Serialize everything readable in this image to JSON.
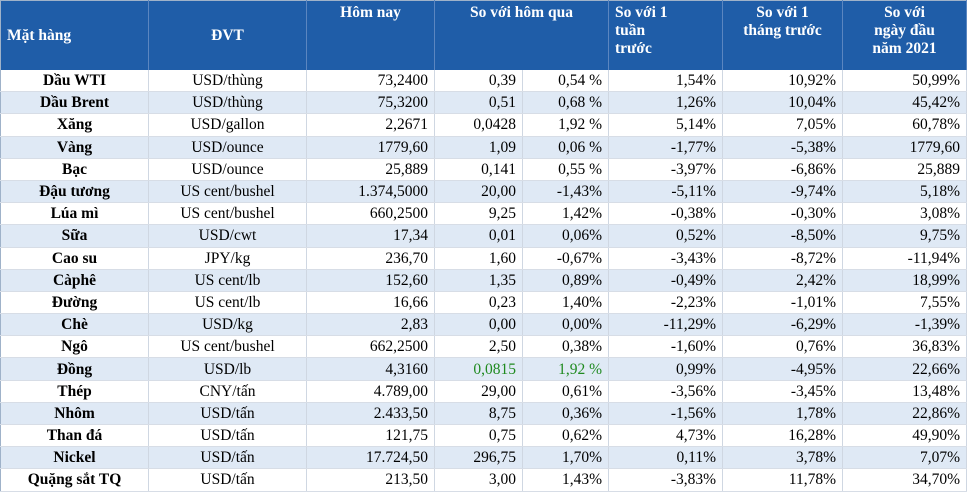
{
  "header": {
    "item": "Mặt hàng",
    "unit": "ĐVT",
    "today": "Hôm nay",
    "vs_yesterday": "So với hôm qua",
    "vs_week_l1": "So với 1",
    "vs_week_l2": "tuần",
    "vs_week_l3": "trước",
    "vs_month_l1": "So với 1",
    "vs_month_l2": "tháng trước",
    "vs_year_l1": "So với",
    "vs_year_l2": "ngày đầu",
    "vs_year_l3": "năm 2021"
  },
  "rows": [
    {
      "name": "Dầu WTI",
      "unit": "USD/thùng",
      "today": "73,2400",
      "chg": "0,39",
      "pct": "0,54 %",
      "week": "1,54%",
      "month": "10,92%",
      "year": "50,99%"
    },
    {
      "name": "Dầu Brent",
      "unit": "USD/thùng",
      "today": "75,3200",
      "chg": "0,51",
      "pct": "0,68 %",
      "week": "1,26%",
      "month": "10,04%",
      "year": "45,42%"
    },
    {
      "name": "Xăng",
      "unit": "USD/gallon",
      "today": "2,2671",
      "chg": "0,0428",
      "pct": "1,92 %",
      "week": "5,14%",
      "month": "7,05%",
      "year": "60,78%"
    },
    {
      "name": "Vàng",
      "unit": "USD/ounce",
      "today": "1779,60",
      "chg": "1,09",
      "pct": "0,06 %",
      "week": "-1,77%",
      "month": "-5,38%",
      "year": "1779,60"
    },
    {
      "name": "Bạc",
      "unit": "USD/ounce",
      "today": "25,889",
      "chg": "0,141",
      "pct": "0,55 %",
      "week": "-3,97%",
      "month": "-6,86%",
      "year": "25,889"
    },
    {
      "name": "Đậu tương",
      "unit": "US cent/bushel",
      "today": "1.374,5000",
      "chg": "20,00",
      "pct": "-1,43%",
      "week": "-5,11%",
      "month": "-9,74%",
      "year": "5,18%"
    },
    {
      "name": "Lúa mì",
      "unit": "US cent/bushel",
      "today": "660,2500",
      "chg": "9,25",
      "pct": "1,42%",
      "week": "-0,38%",
      "month": "-0,30%",
      "year": "3,08%"
    },
    {
      "name": "Sữa",
      "unit": "USD/cwt",
      "today": "17,34",
      "chg": "0,01",
      "pct": "0,06%",
      "week": "0,52%",
      "month": "-8,50%",
      "year": "9,75%"
    },
    {
      "name": "Cao su",
      "unit": "JPY/kg",
      "today": "236,70",
      "chg": "1,60",
      "pct": "-0,67%",
      "week": "-3,43%",
      "month": "-8,72%",
      "year": "-11,94%"
    },
    {
      "name": "Càphê",
      "unit": "US cent/lb",
      "today": "152,60",
      "chg": "1,35",
      "pct": "0,89%",
      "week": "-0,49%",
      "month": "2,42%",
      "year": "18,99%"
    },
    {
      "name": "Đường",
      "unit": "US cent/lb",
      "today": "16,66",
      "chg": "0,23",
      "pct": "1,40%",
      "week": "-2,23%",
      "month": "-1,01%",
      "year": "7,55%"
    },
    {
      "name": "Chè",
      "unit": "USD/kg",
      "today": "2,83",
      "chg": "0,00",
      "pct": "0,00%",
      "week": "-11,29%",
      "month": "-6,29%",
      "year": "-1,39%"
    },
    {
      "name": "Ngô",
      "unit": "US cent/bushel",
      "today": "662,2500",
      "chg": "2,50",
      "pct": "0,38%",
      "week": "-1,60%",
      "month": "0,76%",
      "year": "36,83%"
    },
    {
      "name": "Đồng",
      "unit": "USD/lb",
      "today": "4,3160",
      "chg": "0,0815",
      "pct": "1,92 %",
      "week": "0,99%",
      "month": "-4,95%",
      "year": "22,66%"
    },
    {
      "name": "Thép",
      "unit": "CNY/tấn",
      "today": "4.789,00",
      "chg": "29,00",
      "pct": "0,61%",
      "week": "-3,56%",
      "month": "-3,45%",
      "year": "13,48%"
    },
    {
      "name": "Nhôm",
      "unit": "USD/tấn",
      "today": "2.433,50",
      "chg": "8,75",
      "pct": "0,36%",
      "week": "-1,56%",
      "month": "1,78%",
      "year": "22,86%"
    },
    {
      "name": "Than đá",
      "unit": "USD/tấn",
      "today": "121,75",
      "chg": "0,75",
      "pct": "0,62%",
      "week": "4,73%",
      "month": "16,28%",
      "year": "49,90%"
    },
    {
      "name": "Nickel",
      "unit": "USD/tấn",
      "today": "17.724,50",
      "chg": "296,75",
      "pct": "1,70%",
      "week": "0,11%",
      "month": "3,78%",
      "year": "7,07%"
    },
    {
      "name": "Quặng sắt TQ",
      "unit": "USD/tấn",
      "today": "213,50",
      "chg": "3,00",
      "pct": "1,43%",
      "week": "-3,83%",
      "month": "11,78%",
      "year": "34,70%"
    }
  ]
}
